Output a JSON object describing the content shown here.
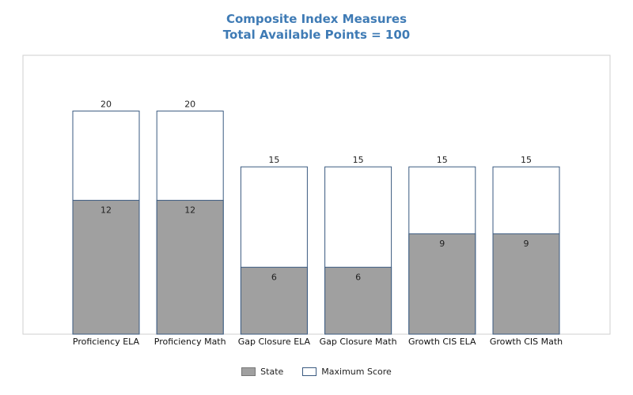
{
  "chart_data": {
    "type": "bar",
    "title": "Composite Index Measures",
    "subtitle": "Total Available Points = 100",
    "categories": [
      "Proficiency ELA",
      "Proficiency Math",
      "Gap Closure ELA",
      "Gap Closure Math",
      "Growth CIS ELA",
      "Growth CIS Math"
    ],
    "series": [
      {
        "name": "State",
        "values": [
          12,
          12,
          6,
          6,
          9,
          9
        ],
        "color": "#a0a0a0"
      },
      {
        "name": "Maximum Score",
        "values": [
          20,
          20,
          15,
          15,
          15,
          15
        ],
        "color": "#ffffff"
      }
    ],
    "ylim": [
      0,
      25
    ],
    "grid": false,
    "legend_position": "bottom-center",
    "bar_outline_color": "#3a5a80",
    "title_color": "#3f7bb5"
  }
}
